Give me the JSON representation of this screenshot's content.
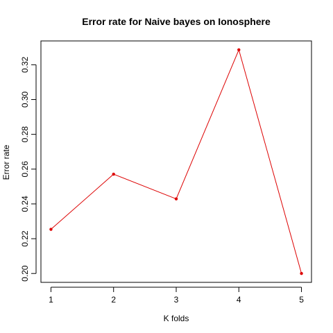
{
  "chart_data": {
    "type": "line",
    "title": "Error rate for Naive bayes on Ionosphere",
    "xlabel": "K folds",
    "ylabel": "Error rate",
    "x": [
      1,
      2,
      3,
      4,
      5
    ],
    "series": [
      {
        "values": [
          0.2254,
          0.2571,
          0.2429,
          0.3286,
          0.2
        ]
      }
    ],
    "x_ticks": [
      "1",
      "2",
      "3",
      "4",
      "5"
    ],
    "y_ticks": [
      "0.20",
      "0.22",
      "0.24",
      "0.26",
      "0.28",
      "0.30",
      "0.32"
    ],
    "y_tick_values": [
      0.2,
      0.22,
      0.24,
      0.26,
      0.28,
      0.3,
      0.32
    ],
    "xlim": [
      0.84,
      5.16
    ],
    "ylim": [
      0.1949,
      0.3337
    ],
    "line_color": "#dd0000",
    "point_color": "#dd0000",
    "grid": false,
    "legend": "none"
  }
}
